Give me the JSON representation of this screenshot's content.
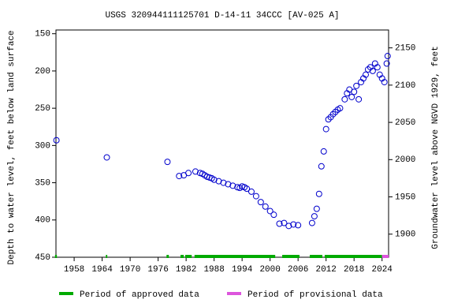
{
  "chart_data": {
    "type": "scatter",
    "title": "USGS 320944111125701 D-14-11 34CCC [AV-025 A]",
    "y_label": "Depth to water level, feet below land surface",
    "y2_label": "Groundwater level above NGVD 1929, feet",
    "xlim": [
      1954.1,
      2025.4
    ],
    "xticks": [
      1958,
      1964,
      1970,
      1976,
      1982,
      1988,
      1994,
      2000,
      2006,
      2012,
      2018,
      2024
    ],
    "ylim": [
      450,
      145
    ],
    "yticks": [
      150,
      200,
      250,
      300,
      350,
      400,
      450
    ],
    "y2lim": [
      1869,
      2174
    ],
    "y2ticks": [
      1900,
      1950,
      2000,
      2050,
      2100,
      2150
    ],
    "series": [
      {
        "name": "Depth to water level",
        "color": "#0000cc",
        "x": [
          1954.2,
          1965,
          1978,
          1980.5,
          1981.5,
          1982.5,
          1984,
          1985,
          1985.5,
          1986,
          1986.5,
          1987,
          1987.5,
          1988,
          1989,
          1990,
          1991,
          1992,
          1993,
          1993.5,
          1994,
          1994.5,
          1995,
          1996,
          1997,
          1998,
          1999,
          2000,
          2000.8,
          2002,
          2003,
          2004,
          2005,
          2006,
          2009,
          2009.5,
          2010,
          2010.5,
          2011,
          2011.5,
          2012,
          2012.5,
          2013,
          2013.5,
          2014,
          2014.5,
          2015,
          2016,
          2016.5,
          2017,
          2017.5,
          2018,
          2018.5,
          2019,
          2019.5,
          2020,
          2020.5,
          2021,
          2021.5,
          2022,
          2022.5,
          2023,
          2023.5,
          2024,
          2024.5,
          2025,
          2025.2
        ],
        "values": [
          293,
          316,
          322,
          341,
          340,
          337,
          335,
          337,
          338,
          340,
          342,
          343,
          344,
          346,
          348,
          350,
          352,
          354,
          356,
          357,
          355,
          356,
          358,
          362,
          368,
          376,
          382,
          388,
          393,
          405,
          404,
          408,
          406,
          407,
          404,
          395,
          385,
          365,
          328,
          308,
          278,
          265,
          262,
          258,
          255,
          252,
          250,
          238,
          230,
          225,
          235,
          228,
          220,
          238,
          215,
          210,
          205,
          198,
          195,
          200,
          190,
          195,
          205,
          210,
          215,
          190,
          180
        ]
      }
    ],
    "periods": [
      {
        "name": "Period of approved data",
        "color": "#00aa00",
        "ranges": [
          [
            1953.9,
            1954.3
          ],
          [
            1964.8,
            1965.1
          ],
          [
            1977.8,
            1978.3
          ],
          [
            1980.8,
            1981.5
          ],
          [
            1981.8,
            1983.2
          ],
          [
            1983.8,
            2001.1
          ],
          [
            2002.6,
            2006.3
          ],
          [
            2008.5,
            2011.2
          ],
          [
            2011.7,
            2024.0
          ]
        ]
      },
      {
        "name": "Period of provisional data",
        "color": "#dd55dd",
        "ranges": [
          [
            2024.0,
            2025.4
          ]
        ]
      }
    ]
  }
}
